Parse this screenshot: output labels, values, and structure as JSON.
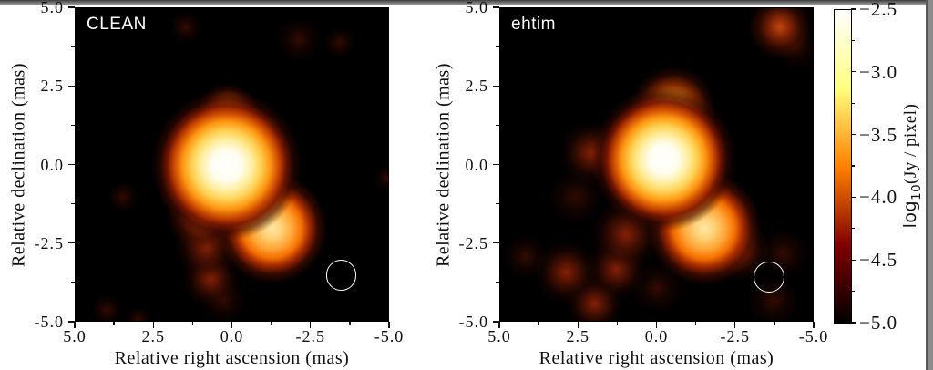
{
  "frame": {
    "top_color": "#3c3c3c",
    "right_color": "#8c8c8c"
  },
  "chart_data": {
    "type": "heatmap",
    "description": "Side-by-side VLBI image reconstructions of the same radio source with a shared logarithmic intensity colorbar",
    "colormap": "afmhot",
    "background_color": "#000000",
    "panels": [
      {
        "label": "CLEAN",
        "xlabel": "Relative right ascension (mas)",
        "ylabel": "Relative declination (mas)",
        "xlim": [
          5.0,
          -5.0
        ],
        "ylim": [
          -5.0,
          5.0
        ],
        "xtick_labels": [
          "5.0",
          "2.5",
          "0.0",
          "-2.5",
          "-5.0"
        ],
        "ytick_labels": [
          "5.0",
          "2.5",
          "0.0",
          "-2.5",
          "-5.0"
        ],
        "beam_circle": {
          "x_mas": -3.45,
          "y_mas": -3.5,
          "radius_mas": 0.49
        },
        "sources": [
          {
            "name": "core",
            "x_mas": 0.2,
            "y_mas": 0.0,
            "radius_mas": 2.4,
            "intensity": "hot"
          },
          {
            "name": "core-north-extension",
            "x_mas": 0.15,
            "y_mas": 1.6,
            "radius_mas": 1.0,
            "intensity": "warm2"
          },
          {
            "name": "secondary-component",
            "x_mas": -1.25,
            "y_mas": -2.0,
            "radius_mas": 1.75,
            "intensity": "warm"
          },
          {
            "name": "bridge",
            "x_mas": -0.5,
            "y_mas": -1.0,
            "radius_mas": 1.05,
            "intensity": "glow"
          },
          {
            "name": "south-tail-1",
            "x_mas": 1.0,
            "y_mas": -1.6,
            "radius_mas": 1.1,
            "intensity": "ember2"
          },
          {
            "name": "south-tail-2",
            "x_mas": 0.85,
            "y_mas": -2.6,
            "radius_mas": 1.0,
            "intensity": "ember"
          },
          {
            "name": "south-tail-3",
            "x_mas": 0.7,
            "y_mas": -3.6,
            "radius_mas": 0.9,
            "intensity": "ember"
          },
          {
            "name": "south-tail-hook",
            "x_mas": 0.3,
            "y_mas": -4.3,
            "radius_mas": 0.7,
            "intensity": "dim"
          },
          {
            "name": "west-of-core",
            "x_mas": 1.5,
            "y_mas": -0.8,
            "radius_mas": 0.8,
            "intensity": "ember"
          },
          {
            "name": "noise-nw",
            "x_mas": 1.5,
            "y_mas": 4.4,
            "radius_mas": 0.5,
            "intensity": "dim"
          },
          {
            "name": "noise-ne-1",
            "x_mas": -2.1,
            "y_mas": 4.0,
            "radius_mas": 0.7,
            "intensity": "dim"
          },
          {
            "name": "noise-ne-2",
            "x_mas": -3.4,
            "y_mas": 3.9,
            "radius_mas": 0.5,
            "intensity": "dim"
          },
          {
            "name": "noise-e",
            "x_mas": -4.9,
            "y_mas": -0.4,
            "radius_mas": 0.4,
            "intensity": "dim"
          },
          {
            "name": "noise-w",
            "x_mas": 3.5,
            "y_mas": -1.0,
            "radius_mas": 0.5,
            "intensity": "dim"
          },
          {
            "name": "noise-sw-1",
            "x_mas": 4.0,
            "y_mas": -4.6,
            "radius_mas": 0.5,
            "intensity": "dim"
          },
          {
            "name": "noise-sw-2",
            "x_mas": 3.0,
            "y_mas": -4.9,
            "radius_mas": 0.4,
            "intensity": "dim"
          }
        ]
      },
      {
        "label": "ehtim",
        "xlabel": "Relative right ascension (mas)",
        "ylabel": "Relative declination (mas)",
        "xlim": [
          5.0,
          -5.0
        ],
        "ylim": [
          -5.0,
          5.0
        ],
        "xtick_labels": [
          "5.0",
          "2.5",
          "0.0",
          "-2.5",
          "-5.0"
        ],
        "ytick_labels": [
          "5.0",
          "2.5",
          "0.0",
          "-2.5",
          "-5.0"
        ],
        "beam_circle": {
          "x_mas": -3.55,
          "y_mas": -3.55,
          "radius_mas": 0.49
        },
        "sources": [
          {
            "name": "core",
            "x_mas": -0.2,
            "y_mas": 0.2,
            "radius_mas": 2.3,
            "intensity": "hot"
          },
          {
            "name": "core-north-extension",
            "x_mas": -0.5,
            "y_mas": 1.8,
            "radius_mas": 1.35,
            "intensity": "warm2"
          },
          {
            "name": "secondary-component",
            "x_mas": -1.5,
            "y_mas": -2.0,
            "radius_mas": 1.8,
            "intensity": "warm"
          },
          {
            "name": "bridge",
            "x_mas": -0.7,
            "y_mas": -1.0,
            "radius_mas": 1.0,
            "intensity": "glow"
          },
          {
            "name": "west-shoulder-1",
            "x_mas": 2.1,
            "y_mas": 0.4,
            "radius_mas": 1.0,
            "intensity": "ember"
          },
          {
            "name": "west-shoulder-2",
            "x_mas": 2.6,
            "y_mas": -1.0,
            "radius_mas": 0.85,
            "intensity": "dim"
          },
          {
            "name": "south-tail-1",
            "x_mas": 1.0,
            "y_mas": -2.2,
            "radius_mas": 1.1,
            "intensity": "ember"
          },
          {
            "name": "south-tail-2",
            "x_mas": 1.3,
            "y_mas": -3.3,
            "radius_mas": 0.95,
            "intensity": "ember"
          },
          {
            "name": "sw-blob-1",
            "x_mas": 2.9,
            "y_mas": -3.4,
            "radius_mas": 1.0,
            "intensity": "ember"
          },
          {
            "name": "sw-blob-2",
            "x_mas": 2.0,
            "y_mas": -4.4,
            "radius_mas": 0.9,
            "intensity": "ember"
          },
          {
            "name": "sw-blob-3",
            "x_mas": 4.2,
            "y_mas": -2.9,
            "radius_mas": 0.7,
            "intensity": "dim"
          },
          {
            "name": "south-center",
            "x_mas": 0.0,
            "y_mas": -3.9,
            "radius_mas": 0.8,
            "intensity": "dim"
          },
          {
            "name": "se-diffuse-1",
            "x_mas": -2.6,
            "y_mas": -2.7,
            "radius_mas": 1.0,
            "intensity": "ember"
          },
          {
            "name": "se-diffuse-2",
            "x_mas": -4.0,
            "y_mas": -2.8,
            "radius_mas": 0.8,
            "intensity": "dim"
          },
          {
            "name": "se-diffuse-3",
            "x_mas": -3.7,
            "y_mas": -4.3,
            "radius_mas": 0.8,
            "intensity": "dim"
          },
          {
            "name": "ne-corner",
            "x_mas": -3.9,
            "y_mas": 4.4,
            "radius_mas": 1.0,
            "intensity": "ember2"
          },
          {
            "name": "ne-corner-halo",
            "x_mas": -4.4,
            "y_mas": 3.8,
            "radius_mas": 0.7,
            "intensity": "dim"
          }
        ]
      }
    ],
    "colorbar": {
      "label": "log10(Jy / pixel)",
      "label_prefix": "log",
      "label_subscript": "10",
      "label_suffix": "(Jy / pixel)",
      "tick_labels": [
        "−2.5",
        "−3.0",
        "−3.5",
        "−4.0",
        "−4.5",
        "−5.0"
      ],
      "vmin": -5.0,
      "vmax": -2.5
    }
  }
}
